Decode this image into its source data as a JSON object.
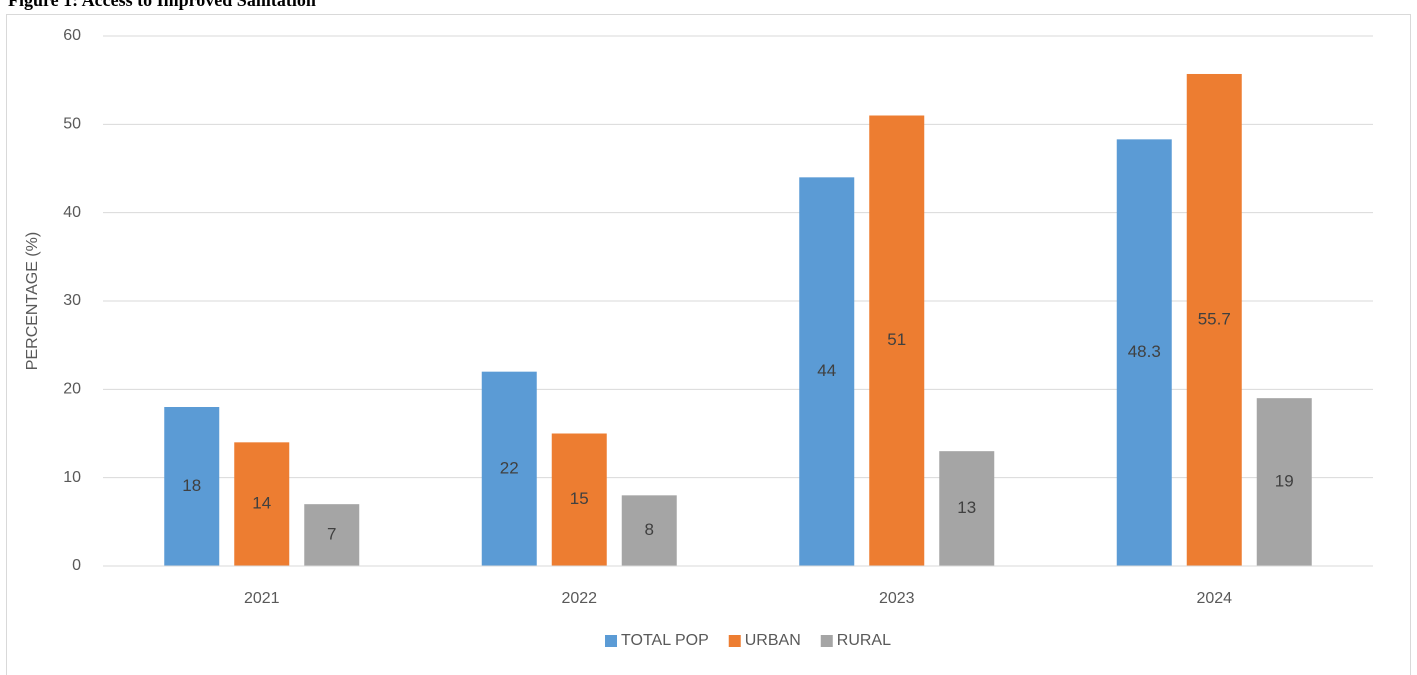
{
  "chart_data": {
    "type": "bar",
    "title": "Figure 1: Access to Improved Sanitation",
    "y_label": "PERCENTAGE (%)",
    "categories": [
      "2021",
      "2022",
      "2023",
      "2024"
    ],
    "series": [
      {
        "name": "TOTAL POP",
        "color": "#5b9bd5",
        "values": [
          18,
          22,
          44,
          48.3
        ]
      },
      {
        "name": "URBAN",
        "color": "#ed7d31",
        "values": [
          14,
          15,
          51,
          55.7
        ]
      },
      {
        "name": "RURAL",
        "color": "#a5a5a5",
        "values": [
          7,
          8,
          13,
          19
        ]
      }
    ],
    "ylim": [
      0,
      60
    ],
    "yticks": [
      0,
      10,
      20,
      30,
      40,
      50,
      60
    ],
    "grid": true,
    "legend": "bottom"
  }
}
